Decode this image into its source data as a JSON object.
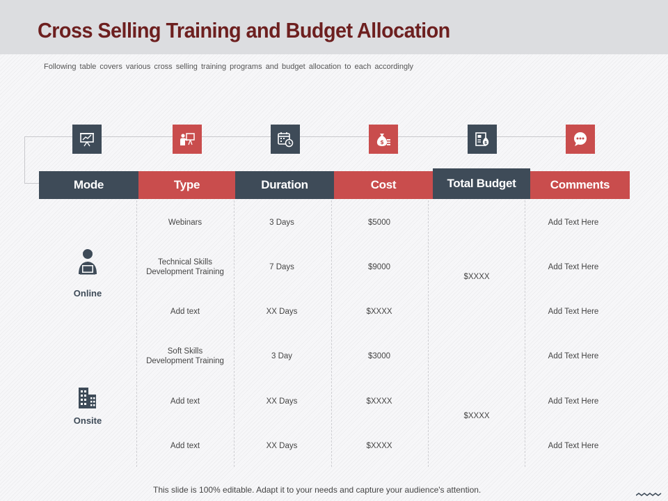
{
  "title": "Cross Selling Training and Budget Allocation",
  "subtitle": "Following table covers various cross selling training programs and budget allocation to each accordingly",
  "colors": {
    "dark": "#3e4b58",
    "accent": "#c94d4d",
    "title": "#6d1f1f"
  },
  "icons": [
    "presentation-chart-icon",
    "trainer-board-icon",
    "calendar-clock-icon",
    "money-bag-icon",
    "budget-document-icon",
    "chat-bubble-icon"
  ],
  "headers": [
    "Mode",
    "Type",
    "Duration",
    "Cost",
    "Total Budget",
    "Comments"
  ],
  "modes": [
    {
      "label": "Online",
      "icon": "person-laptop-icon"
    },
    {
      "label": "Onsite",
      "icon": "office-building-icon"
    }
  ],
  "rows": [
    {
      "type": "Webinars",
      "duration": "3 Days",
      "cost": "$5000",
      "comments": "Add Text Here"
    },
    {
      "type": "Technical Skills\nDevelopment Training",
      "duration": "7 Days",
      "cost": "$9000",
      "comments": "Add Text Here"
    },
    {
      "type": "Add text",
      "duration": "XX Days",
      "cost": "$XXXX",
      "comments": "Add Text Here"
    },
    {
      "type": "Soft Skills\nDevelopment Training",
      "duration": "3 Day",
      "cost": "$3000",
      "comments": "Add Text Here"
    },
    {
      "type": "Add text",
      "duration": "XX Days",
      "cost": "$XXXX",
      "comments": "Add Text Here"
    },
    {
      "type": "Add text",
      "duration": "XX Days",
      "cost": "$XXXX",
      "comments": "Add Text Here"
    }
  ],
  "budgets": [
    "$XXXX",
    "$XXXX"
  ],
  "footer": "This slide is 100% editable. Adapt it to your needs and capture your audience's attention."
}
